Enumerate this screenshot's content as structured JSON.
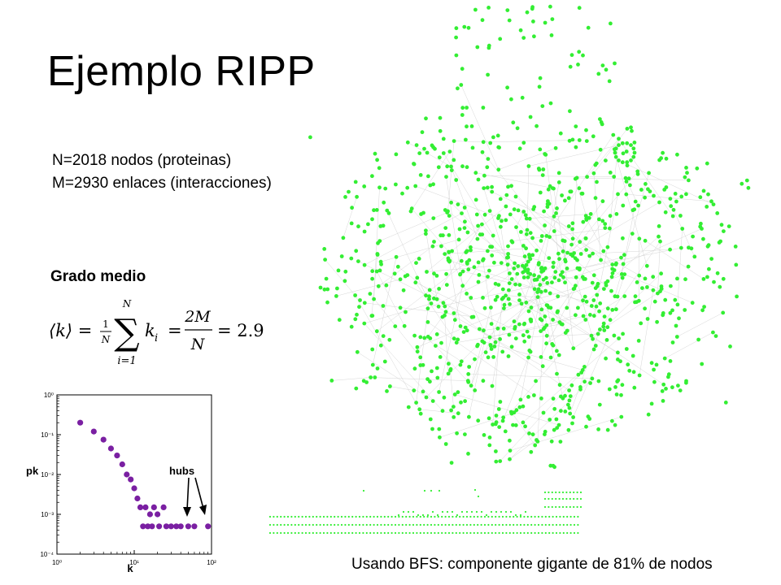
{
  "slide": {
    "title": "Ejemplo RIPP",
    "nodes_line": "N=2018 nodos (proteinas)",
    "edges_line": "M=2930 enlaces (interacciones)",
    "degree_heading": "Grado medio",
    "caption": "Usando BFS: componente gigante de 81% de nodos"
  },
  "formula": {
    "lhs": "⟨k⟩ =",
    "frac1_num": "1",
    "frac1_den": "N",
    "sum_top": "N",
    "sum_symbol": "∑",
    "sum_bottom": "i=1",
    "term": "k",
    "term_sub": "i",
    "eq": "=",
    "frac2_num": "2M",
    "frac2_den": "N",
    "result": "= 2.9"
  },
  "network": {
    "node_color": "#33ee33",
    "edge_color": "#cccccc"
  },
  "chart_data": {
    "type": "scatter",
    "title": "",
    "xlabel": "k",
    "ylabel": "pk",
    "x_scale": "log",
    "y_scale": "log",
    "xlim": [
      1,
      100
    ],
    "ylim": [
      0.0001,
      1
    ],
    "x_ticks": [
      {
        "value": 1,
        "label": "10⁰"
      },
      {
        "value": 10,
        "label": "10¹"
      },
      {
        "value": 100,
        "label": "10²"
      }
    ],
    "y_ticks": [
      {
        "value": 1,
        "label": "10⁰"
      },
      {
        "value": 0.1,
        "label": "10⁻¹"
      },
      {
        "value": 0.01,
        "label": "10⁻²"
      },
      {
        "value": 0.001,
        "label": "10⁻³"
      },
      {
        "value": 0.0001,
        "label": "10⁻⁴"
      }
    ],
    "annotation": "hubs",
    "marker_color": "#7a1fa2",
    "points": [
      {
        "x": 2,
        "y": 0.2
      },
      {
        "x": 3,
        "y": 0.12
      },
      {
        "x": 4,
        "y": 0.075
      },
      {
        "x": 5,
        "y": 0.045
      },
      {
        "x": 6,
        "y": 0.03
      },
      {
        "x": 7,
        "y": 0.018
      },
      {
        "x": 8,
        "y": 0.01
      },
      {
        "x": 9,
        "y": 0.0075
      },
      {
        "x": 10,
        "y": 0.0045
      },
      {
        "x": 11,
        "y": 0.0025
      },
      {
        "x": 12,
        "y": 0.0015
      },
      {
        "x": 14,
        "y": 0.0015
      },
      {
        "x": 16,
        "y": 0.001
      },
      {
        "x": 18,
        "y": 0.0015
      },
      {
        "x": 20,
        "y": 0.001
      },
      {
        "x": 24,
        "y": 0.0015
      },
      {
        "x": 13,
        "y": 0.0005
      },
      {
        "x": 15,
        "y": 0.0005
      },
      {
        "x": 17,
        "y": 0.0005
      },
      {
        "x": 21,
        "y": 0.0005
      },
      {
        "x": 26,
        "y": 0.0005
      },
      {
        "x": 30,
        "y": 0.0005
      },
      {
        "x": 35,
        "y": 0.0005
      },
      {
        "x": 40,
        "y": 0.0005
      },
      {
        "x": 50,
        "y": 0.0005
      },
      {
        "x": 60,
        "y": 0.0005
      },
      {
        "x": 90,
        "y": 0.0005
      }
    ]
  }
}
